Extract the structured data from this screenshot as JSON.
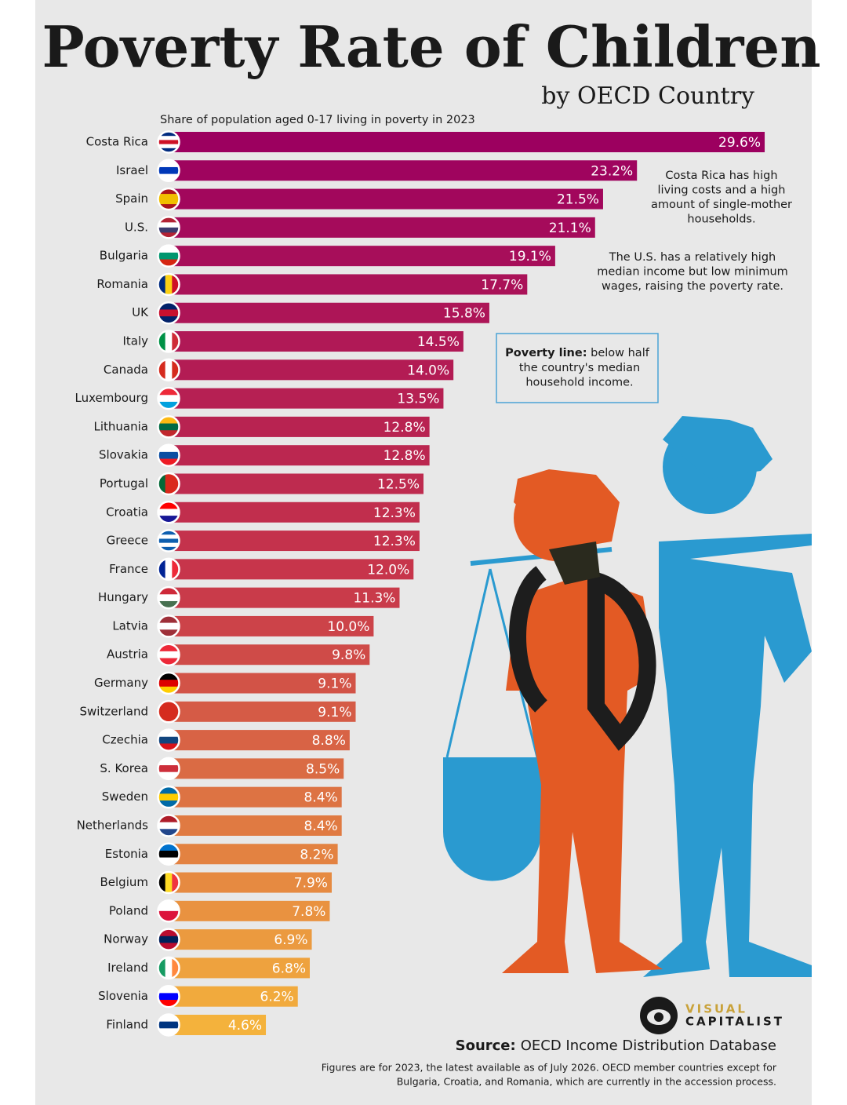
{
  "chart_data": {
    "type": "bar",
    "orientation": "horizontal",
    "title": "Poverty Rate of Children",
    "subtitle": "by OECD Country",
    "caption": "Share of population aged 0-17 living in poverty in 2023",
    "categories": [
      "Costa Rica",
      "Israel",
      "Spain",
      "U.S.",
      "Bulgaria",
      "Romania",
      "UK",
      "Italy",
      "Canada",
      "Luxembourg",
      "Lithuania",
      "Slovakia",
      "Portugal",
      "Croatia",
      "Greece",
      "France",
      "Hungary",
      "Latvia",
      "Austria",
      "Germany",
      "Switzerland",
      "Czechia",
      "S. Korea",
      "Sweden",
      "Netherlands",
      "Estonia",
      "Belgium",
      "Poland",
      "Norway",
      "Ireland",
      "Slovenia",
      "Finland"
    ],
    "values": [
      29.6,
      23.2,
      21.5,
      21.1,
      19.1,
      17.7,
      15.8,
      14.5,
      14.0,
      13.5,
      12.8,
      12.8,
      12.5,
      12.3,
      12.3,
      12.0,
      11.3,
      10.0,
      9.8,
      9.1,
      9.1,
      8.8,
      8.5,
      8.4,
      8.4,
      8.2,
      7.9,
      7.8,
      6.9,
      6.8,
      6.2,
      4.6
    ],
    "value_labels": [
      "29.6%",
      "23.2%",
      "21.5%",
      "21.1%",
      "19.1%",
      "17.7%",
      "15.8%",
      "14.5%",
      "14.0%",
      "13.5%",
      "12.8%",
      "12.8%",
      "12.5%",
      "12.3%",
      "12.3%",
      "12.0%",
      "11.3%",
      "10.0%",
      "9.8%",
      "9.1%",
      "9.1%",
      "8.8%",
      "8.5%",
      "8.4%",
      "8.4%",
      "8.2%",
      "7.9%",
      "7.8%",
      "6.9%",
      "6.8%",
      "6.2%",
      "4.6%"
    ],
    "colors": [
      "#9c005f",
      "#c8374a",
      "#f4b23c"
    ],
    "annotations": [
      [
        "Costa Rica has high",
        "living costs and a high",
        "amount of single-mother",
        "households."
      ],
      [
        "The U.S. has a relatively high",
        "median income but low minimum",
        "wages, raising the poverty rate."
      ]
    ],
    "callout": {
      "label": "Poverty line:",
      "lines": [
        " below half",
        "the country's median",
        "household income."
      ]
    },
    "brand": [
      "VISUAL",
      "CAPITALIST"
    ],
    "source": {
      "label": "Source:",
      "text": "OECD Income Distribution Database"
    },
    "notes": [
      "Figures are for 2023, the latest available as of July 2026. OECD member countries except for",
      "Bulgaria, Croatia, and Romania, which are currently in the accession process."
    ]
  }
}
